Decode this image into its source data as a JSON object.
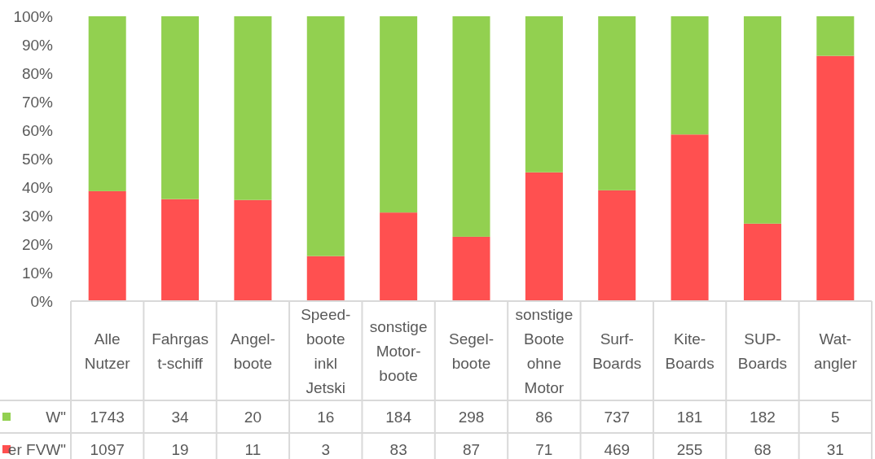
{
  "chart_data": {
    "type": "bar",
    "stacked": true,
    "categories": [
      "Alle\nNutzer",
      "Fahrgas\nt-schiff",
      "Angel-\nboote",
      "Speed-\nboote\ninkl\nJetski",
      "sonstige\nMotor-\nboote",
      "Segel-\nboote",
      "sonstige\nBoote\nohne\nMotor",
      "Surf-\nBoards",
      "Kite-\nBoards",
      "SUP-\nBoards",
      "Wat-\nangler"
    ],
    "series": [
      {
        "name": "er FVW\"",
        "color": "#ff5050",
        "values": [
          38.6,
          35.8,
          35.5,
          15.8,
          31.1,
          22.6,
          45.2,
          38.9,
          58.5,
          27.2,
          86.1
        ]
      },
      {
        "name": "W\"",
        "color": "#92d050",
        "values": [
          61.4,
          64.2,
          64.5,
          84.2,
          68.9,
          77.4,
          54.8,
          61.1,
          41.5,
          72.8,
          13.9
        ]
      }
    ],
    "ylim": [
      0,
      100
    ],
    "yticks": [
      {
        "value": 0,
        "label": "0%"
      },
      {
        "value": 10,
        "label": "10%"
      },
      {
        "value": 20,
        "label": "20%"
      },
      {
        "value": 30,
        "label": "30%"
      },
      {
        "value": 40,
        "label": "40%"
      },
      {
        "value": 50,
        "label": "50%"
      },
      {
        "value": 60,
        "label": "60%"
      },
      {
        "value": 70,
        "label": "70%"
      },
      {
        "value": 80,
        "label": "80%"
      },
      {
        "value": 90,
        "label": "90%"
      },
      {
        "value": 100,
        "label": "100%"
      }
    ],
    "grid": false,
    "legend": "bottom left",
    "annotations": [
      "1743",
      "34",
      "20",
      "16",
      "184",
      "298",
      "86",
      "737",
      "181",
      "182",
      "5",
      "1097",
      "19",
      "11",
      "3",
      "83",
      "87",
      "71",
      "469",
      "255",
      "68",
      "31"
    ]
  }
}
